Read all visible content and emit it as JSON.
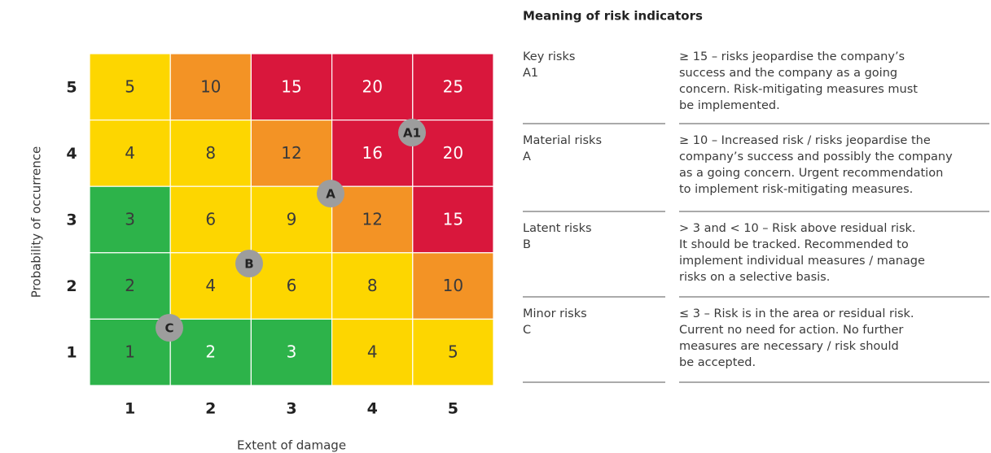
{
  "matrix": {
    "x_axis_title": "Extent of damage",
    "y_axis_title": "Probability of occurrence",
    "x_labels": [
      1,
      2,
      3,
      4,
      5
    ],
    "y_labels": [
      5,
      4,
      3,
      2,
      1
    ],
    "rows": [
      [
        5,
        10,
        15,
        20,
        25
      ],
      [
        4,
        8,
        12,
        16,
        20
      ],
      [
        3,
        6,
        9,
        12,
        15
      ],
      [
        2,
        4,
        6,
        8,
        10
      ],
      [
        1,
        2,
        3,
        4,
        5
      ]
    ],
    "colors": [
      [
        "#fdd600",
        "#f39325",
        "#d9173c",
        "#d9173c",
        "#d9173c"
      ],
      [
        "#fdd600",
        "#fdd600",
        "#f39325",
        "#d9173c",
        "#d9173c"
      ],
      [
        "#2db34a",
        "#fdd600",
        "#fdd600",
        "#f39325",
        "#d9173c"
      ],
      [
        "#2db34a",
        "#fdd600",
        "#fdd600",
        "#fdd600",
        "#f39325"
      ],
      [
        "#2db34a",
        "#2db34a",
        "#2db34a",
        "#fdd600",
        "#fdd600"
      ]
    ],
    "markers": [
      "A1",
      "A",
      "B",
      "C"
    ]
  },
  "legend": {
    "title": "Meaning of risk indicators",
    "rows": [
      {
        "name": "Key risks",
        "code": "A1",
        "lines": [
          "≥ 15 – risks jeopardise the company’s",
          "success and the company as a going",
          "concern. Risk-mitigating measures must",
          "be implemented."
        ]
      },
      {
        "name": "Material risks",
        "code": "A",
        "lines": [
          "≥ 10 – Increased risk / risks jeopardise the",
          "company’s success and possibly the company",
          "as a going concern. Urgent recommendation",
          "to implement risk-mitigating measures."
        ]
      },
      {
        "name": "Latent risks",
        "code": "B",
        "lines": [
          "> 3 and < 10 – Risk above residual risk.",
          "It should be tracked. Recommended to",
          "implement individual measures / manage",
          "risks on a selective basis."
        ]
      },
      {
        "name": "Minor risks",
        "code": "C",
        "lines": [
          "≤ 3 – Risk is in the area or residual risk.",
          "Current no need for action. No further",
          "measures are necessary / risk should",
          "be accepted."
        ]
      }
    ]
  }
}
